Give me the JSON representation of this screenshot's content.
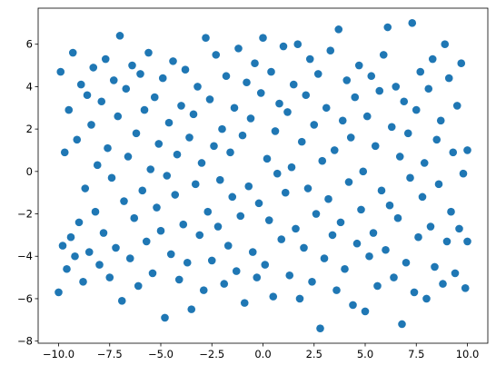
{
  "chart_data": {
    "type": "scatter",
    "color": "#1f77b4",
    "xlim": [
      -11,
      11
    ],
    "ylim": [
      -8.1,
      7.7
    ],
    "xticks": [
      {
        "value": -10,
        "label": "−10.0"
      },
      {
        "value": -7.5,
        "label": "−7.5"
      },
      {
        "value": -5,
        "label": "−5.0"
      },
      {
        "value": -2.5,
        "label": "−2.5"
      },
      {
        "value": 0,
        "label": "0.0"
      },
      2.5,
      {
        "value": 5,
        "label": "5.0"
      },
      7.5,
      {
        "value": 10,
        "label": "10.0"
      }
    ],
    "yticks": [
      {
        "value": -8,
        "label": "−8"
      },
      {
        "value": -6,
        "label": "−6"
      },
      {
        "value": -4,
        "label": "−4"
      },
      {
        "value": -2,
        "label": "−2"
      },
      0,
      2,
      4,
      6
    ],
    "x": [
      -10,
      -9.9,
      -9.8,
      -9.7,
      -9.6,
      -9.5,
      -9.4,
      -9.3,
      -9.2,
      -9.1,
      -9,
      -8.9,
      -8.8,
      -8.7,
      -8.6,
      -8.5,
      -8.4,
      -8.3,
      -8.2,
      -8.1,
      -8,
      -7.9,
      -7.8,
      -7.7,
      -7.6,
      -7.5,
      -7.4,
      -7.3,
      -7.2,
      -7.1,
      -7,
      -6.9,
      -6.8,
      -6.7,
      -6.6,
      -6.5,
      -6.4,
      -6.3,
      -6.2,
      -6.1,
      -6,
      -5.9,
      -5.8,
      -5.7,
      -5.6,
      -5.5,
      -5.4,
      -5.3,
      -5.2,
      -5.1,
      -5,
      -4.9,
      -4.8,
      -4.7,
      -4.6,
      -4.5,
      -4.4,
      -4.3,
      -4.2,
      -4.1,
      -4,
      -3.9,
      -3.8,
      -3.7,
      -3.6,
      -3.5,
      -3.4,
      -3.3,
      -3.2,
      -3.1,
      -3,
      -2.9,
      -2.8,
      -2.7,
      -2.6,
      -2.5,
      -2.4,
      -2.3,
      -2.2,
      -2.1,
      -2,
      -1.9,
      -1.8,
      -1.7,
      -1.6,
      -1.5,
      -1.4,
      -1.3,
      -1.2,
      -1.1,
      -1,
      -0.9,
      -0.8,
      -0.7,
      -0.6,
      -0.5,
      -0.4,
      -0.3,
      -0.2,
      -0.1,
      0,
      0.1,
      0.2,
      0.3,
      0.4,
      0.5,
      0.6,
      0.7,
      0.8,
      0.9,
      1,
      1.1,
      1.2,
      1.3,
      1.4,
      1.5,
      1.6,
      1.7,
      1.8,
      1.9,
      2,
      2.1,
      2.2,
      2.3,
      2.4,
      2.5,
      2.6,
      2.7,
      2.8,
      2.9,
      3,
      3.1,
      3.2,
      3.3,
      3.4,
      3.5,
      3.6,
      3.7,
      3.8,
      3.9,
      4,
      4.1,
      4.2,
      4.3,
      4.4,
      4.5,
      4.6,
      4.7,
      4.8,
      4.9,
      5,
      5.1,
      5.2,
      5.3,
      5.4,
      5.5,
      5.6,
      5.7,
      5.8,
      5.9,
      6,
      6.1,
      6.2,
      6.3,
      6.4,
      6.5,
      6.6,
      6.7,
      6.8,
      6.9,
      7,
      7.1,
      7.2,
      7.3,
      7.4,
      7.5,
      7.6,
      7.7,
      7.8,
      7.9,
      8,
      8.1,
      8.2,
      8.3,
      8.4,
      8.5,
      8.6,
      8.7,
      8.8,
      8.9,
      9,
      9.1,
      9.2,
      9.3,
      9.4,
      9.5,
      9.6,
      9.7,
      9.8,
      9.9,
      10,
      10
    ],
    "y": [
      -5.7,
      4.7,
      -3.5,
      0.9,
      -4.6,
      2.9,
      -3.1,
      5.6,
      -4.0,
      1.5,
      -2.4,
      4.1,
      -5.2,
      -0.8,
      3.6,
      -3.8,
      2.2,
      4.9,
      -1.9,
      0.3,
      -4.4,
      3.3,
      -2.9,
      5.3,
      1.1,
      -5.0,
      -0.3,
      4.3,
      -3.6,
      2.6,
      6.4,
      -6.1,
      -1.4,
      3.9,
      0.7,
      -4.1,
      5.0,
      -2.2,
      1.8,
      -5.4,
      4.6,
      -0.9,
      2.9,
      -3.3,
      5.6,
      0.1,
      -4.8,
      3.5,
      -1.7,
      1.3,
      -2.8,
      4.4,
      -6.9,
      -0.2,
      2.3,
      -3.9,
      5.2,
      -1.1,
      0.8,
      -5.1,
      3.1,
      -2.5,
      4.8,
      -4.3,
      1.6,
      -6.5,
      2.7,
      -0.6,
      4.0,
      -3.0,
      0.4,
      -5.6,
      6.3,
      -1.9,
      3.4,
      -4.2,
      1.2,
      5.5,
      -2.6,
      -0.4,
      2.0,
      -5.3,
      4.5,
      -3.5,
      0.9,
      -1.2,
      3.0,
      -4.7,
      5.8,
      -2.1,
      1.7,
      -6.2,
      4.2,
      -0.7,
      2.5,
      -3.8,
      5.1,
      -5.0,
      -1.5,
      3.7,
      6.3,
      -4.4,
      0.6,
      -2.3,
      4.7,
      -5.9,
      1.9,
      -0.1,
      3.2,
      -3.2,
      5.9,
      -1.0,
      2.8,
      -4.9,
      0.2,
      4.1,
      -2.7,
      6.0,
      -6.0,
      1.4,
      -3.6,
      3.6,
      -0.8,
      5.3,
      -5.2,
      2.2,
      -2.0,
      4.6,
      -7.4,
      0.5,
      -4.1,
      3.0,
      -1.3,
      5.7,
      -3.0,
      1.0,
      -5.6,
      6.7,
      -2.4,
      2.4,
      -4.6,
      4.3,
      -0.5,
      1.6,
      -6.3,
      3.5,
      -3.4,
      5.0,
      -1.8,
      0.0,
      -6.6,
      2.6,
      -4.0,
      4.5,
      -2.9,
      1.2,
      -5.4,
      3.8,
      -0.9,
      5.5,
      -3.7,
      6.8,
      -1.6,
      2.1,
      -5.0,
      4.0,
      -2.2,
      0.7,
      -7.2,
      3.3,
      -4.3,
      1.8,
      -0.3,
      7.0,
      -5.7,
      2.9,
      -3.1,
      4.7,
      -1.2,
      0.4,
      -6.0,
      3.9,
      -2.6,
      5.3,
      -4.5,
      1.5,
      -0.6,
      2.4,
      -5.3,
      6.0,
      -3.3,
      4.4,
      -1.9,
      0.9,
      -4.8,
      3.1,
      -2.7,
      5.1,
      -0.1,
      -5.5,
      1.0,
      -3.3
    ]
  }
}
